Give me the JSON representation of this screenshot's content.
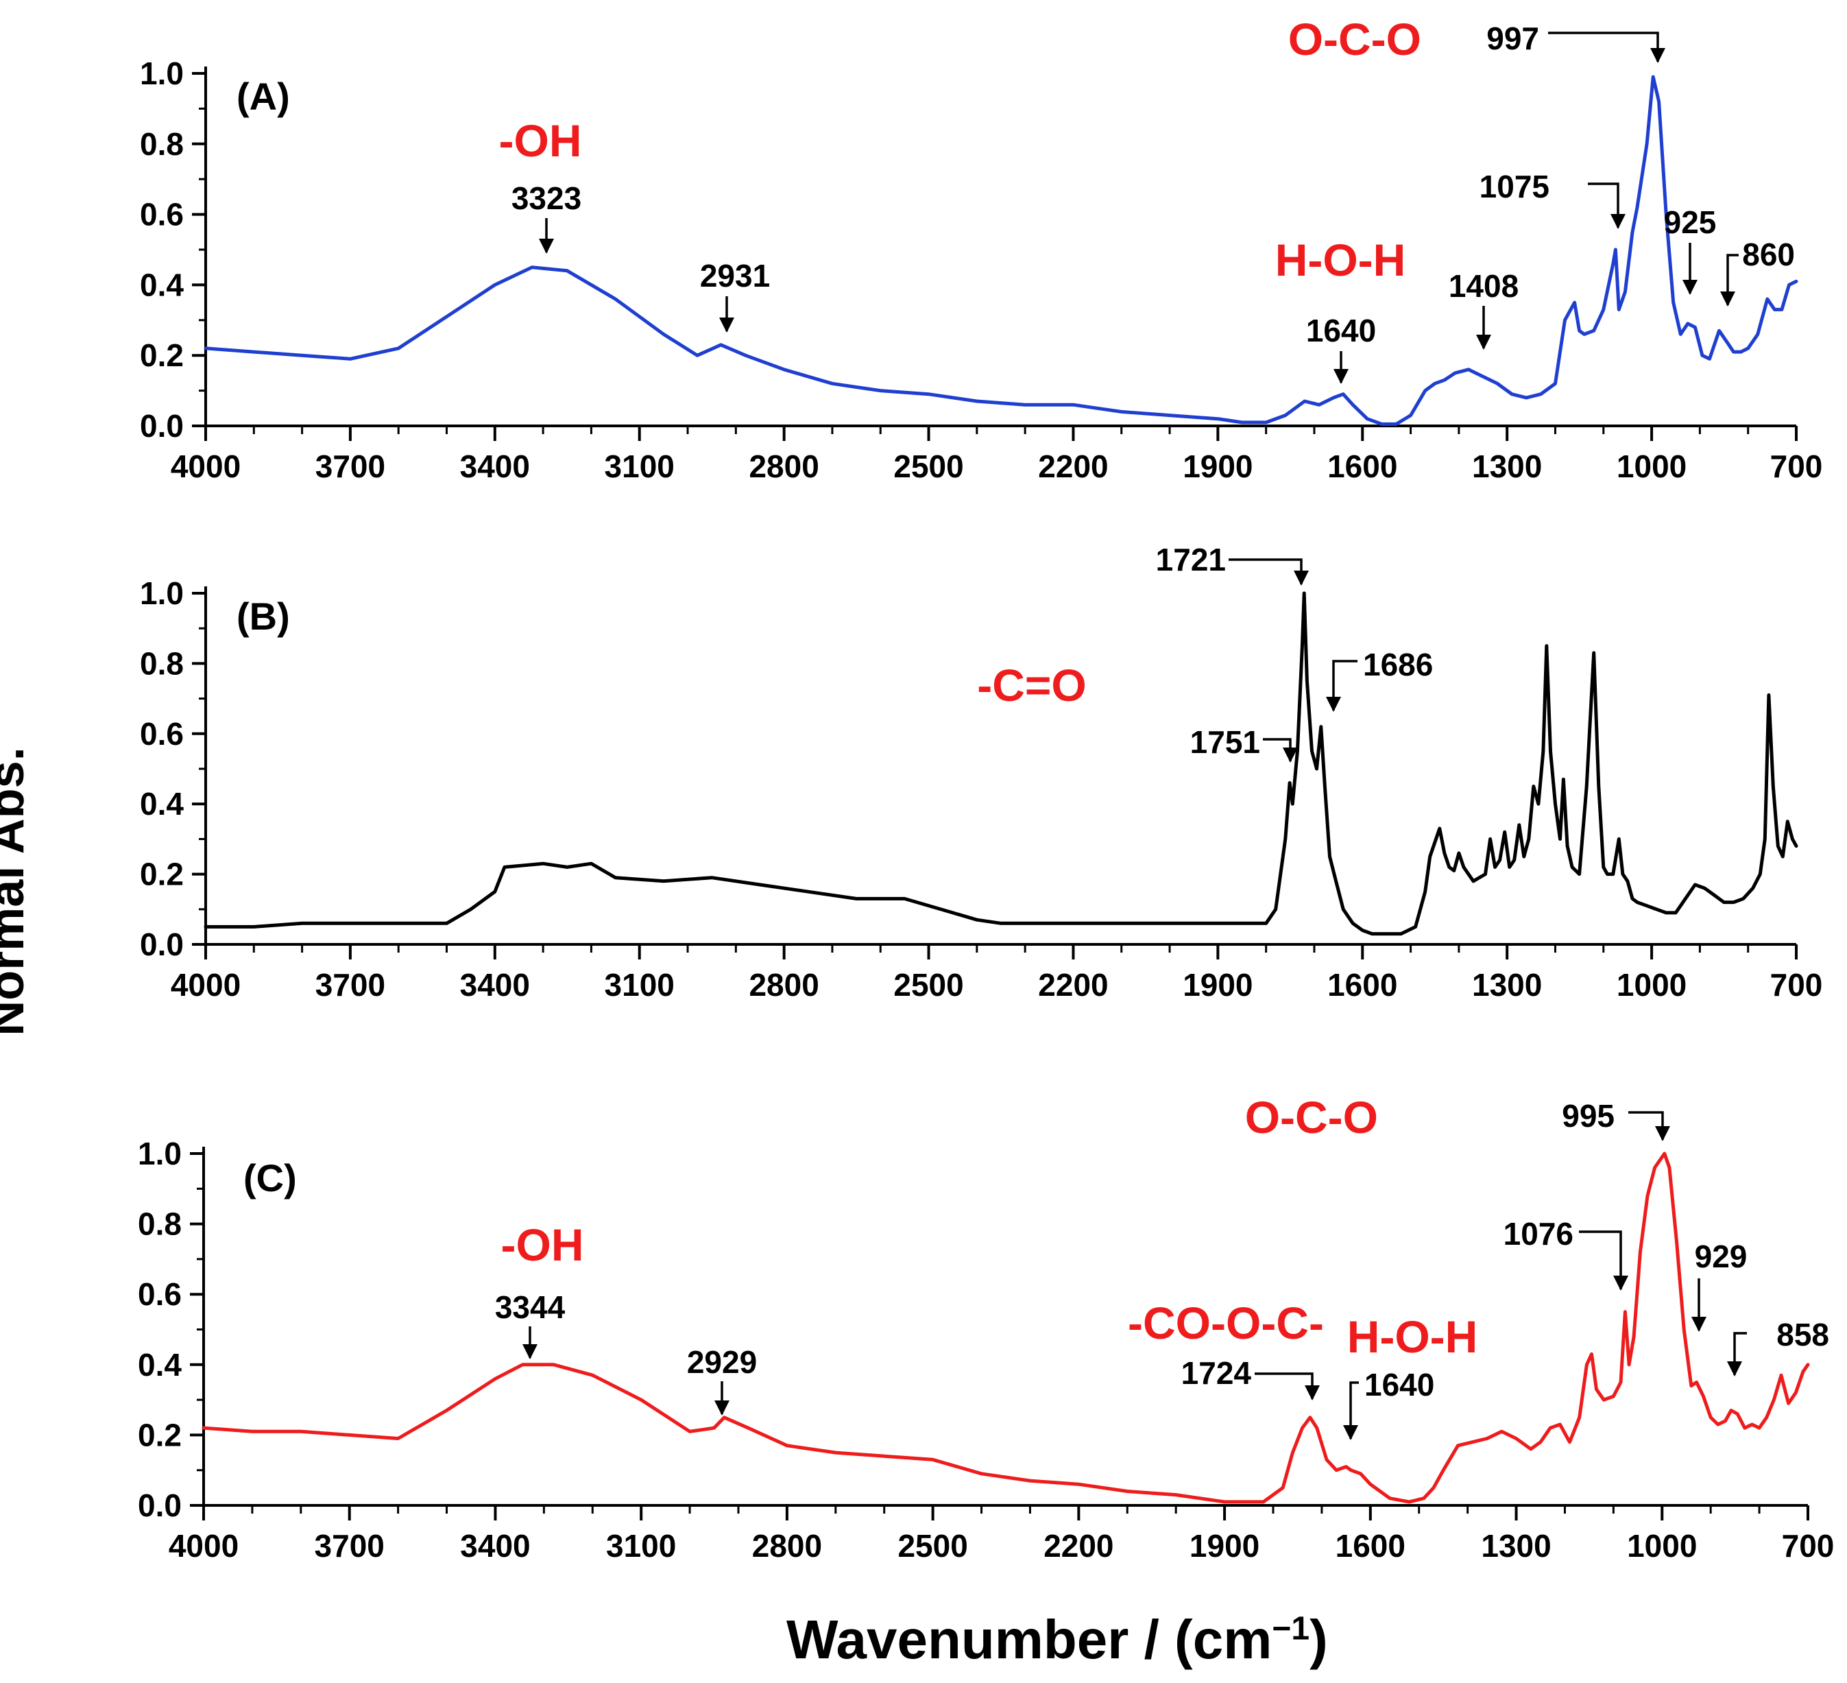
{
  "y_axis_label": "Normal Abs.",
  "x_axis_label_main": "Wavenumber / (cm",
  "x_axis_label_sup": "−1",
  "x_axis_label_close": ")",
  "chart_data": [
    {
      "type": "line",
      "panel": "(A)",
      "color": "#1f3fd0",
      "xlim": [
        4000,
        700
      ],
      "ylim": [
        0,
        1.0
      ],
      "x_ticks": [
        4000,
        3700,
        3400,
        3100,
        2800,
        2500,
        2200,
        1900,
        1600,
        1300,
        1000,
        700
      ],
      "y_ticks": [
        "0.0",
        "0.2",
        "0.4",
        "0.6",
        "0.8",
        "1.0"
      ],
      "series": [
        {
          "name": "(A)",
          "x": [
            4000,
            3900,
            3800,
            3700,
            3600,
            3500,
            3400,
            3323,
            3250,
            3150,
            3050,
            2980,
            2931,
            2880,
            2800,
            2700,
            2600,
            2500,
            2400,
            2300,
            2200,
            2150,
            2100,
            2000,
            1900,
            1850,
            1800,
            1760,
            1720,
            1690,
            1660,
            1640,
            1620,
            1590,
            1560,
            1530,
            1500,
            1470,
            1450,
            1430,
            1408,
            1380,
            1350,
            1320,
            1290,
            1260,
            1230,
            1200,
            1180,
            1160,
            1150,
            1140,
            1120,
            1100,
            1080,
            1075,
            1068,
            1055,
            1040,
            1030,
            1010,
            997,
            985,
            970,
            955,
            940,
            925,
            910,
            895,
            880,
            860,
            845,
            830,
            815,
            800,
            780,
            760,
            745,
            730,
            715,
            700
          ],
          "values": [
            0.22,
            0.21,
            0.2,
            0.19,
            0.22,
            0.31,
            0.4,
            0.45,
            0.44,
            0.36,
            0.26,
            0.2,
            0.23,
            0.2,
            0.16,
            0.12,
            0.1,
            0.09,
            0.07,
            0.06,
            0.06,
            0.05,
            0.04,
            0.03,
            0.02,
            0.01,
            0.01,
            0.03,
            0.07,
            0.06,
            0.08,
            0.09,
            0.06,
            0.02,
            0.005,
            0.005,
            0.03,
            0.1,
            0.12,
            0.13,
            0.15,
            0.16,
            0.14,
            0.12,
            0.09,
            0.08,
            0.09,
            0.12,
            0.3,
            0.35,
            0.27,
            0.26,
            0.27,
            0.33,
            0.46,
            0.5,
            0.33,
            0.38,
            0.55,
            0.62,
            0.8,
            0.99,
            0.92,
            0.6,
            0.35,
            0.26,
            0.29,
            0.28,
            0.2,
            0.19,
            0.27,
            0.24,
            0.21,
            0.21,
            0.22,
            0.26,
            0.36,
            0.33,
            0.33,
            0.4,
            0.41
          ]
        }
      ],
      "annotations": {
        "oh_group": "-OH",
        "hoh_group": "H-O-H",
        "oco_group": "O-C-O",
        "peak_3323": "3323",
        "peak_2931": "2931",
        "peak_1640": "1640",
        "peak_1408": "1408",
        "peak_1075": "1075",
        "peak_997": "997",
        "peak_925": "925",
        "peak_860": "860"
      }
    },
    {
      "type": "line",
      "panel": "(B)",
      "color": "#000000",
      "xlim": [
        4000,
        700
      ],
      "ylim": [
        0,
        1.0
      ],
      "x_ticks": [
        4000,
        3700,
        3400,
        3100,
        2800,
        2500,
        2200,
        1900,
        1600,
        1300,
        1000,
        700
      ],
      "y_ticks": [
        "0.0",
        "0.2",
        "0.4",
        "0.6",
        "0.8",
        "1.0"
      ],
      "series": [
        {
          "name": "(B)",
          "x": [
            4000,
            3900,
            3800,
            3700,
            3600,
            3500,
            3450,
            3400,
            3380,
            3300,
            3250,
            3200,
            3150,
            3050,
            2950,
            2850,
            2750,
            2650,
            2550,
            2450,
            2400,
            2350,
            2300,
            2200,
            2000,
            1850,
            1800,
            1780,
            1760,
            1751,
            1745,
            1735,
            1725,
            1721,
            1715,
            1705,
            1695,
            1686,
            1678,
            1668,
            1655,
            1640,
            1620,
            1600,
            1580,
            1560,
            1520,
            1490,
            1470,
            1460,
            1440,
            1430,
            1420,
            1410,
            1400,
            1390,
            1380,
            1370,
            1345,
            1335,
            1325,
            1315,
            1305,
            1295,
            1285,
            1275,
            1265,
            1255,
            1245,
            1235,
            1225,
            1218,
            1210,
            1200,
            1190,
            1183,
            1175,
            1165,
            1150,
            1135,
            1120,
            1110,
            1100,
            1092,
            1080,
            1068,
            1060,
            1050,
            1040,
            1030,
            1010,
            990,
            970,
            950,
            930,
            910,
            890,
            870,
            850,
            830,
            810,
            790,
            775,
            765,
            757,
            748,
            738,
            728,
            718,
            708,
            700
          ],
          "values": [
            0.05,
            0.05,
            0.06,
            0.06,
            0.06,
            0.06,
            0.1,
            0.15,
            0.22,
            0.23,
            0.22,
            0.23,
            0.19,
            0.18,
            0.19,
            0.17,
            0.15,
            0.13,
            0.13,
            0.09,
            0.07,
            0.06,
            0.06,
            0.06,
            0.06,
            0.06,
            0.06,
            0.1,
            0.3,
            0.46,
            0.4,
            0.55,
            0.85,
            1.0,
            0.75,
            0.55,
            0.5,
            0.62,
            0.45,
            0.25,
            0.18,
            0.1,
            0.06,
            0.04,
            0.03,
            0.03,
            0.03,
            0.05,
            0.15,
            0.25,
            0.33,
            0.26,
            0.22,
            0.21,
            0.26,
            0.22,
            0.2,
            0.18,
            0.2,
            0.3,
            0.22,
            0.24,
            0.32,
            0.22,
            0.24,
            0.34,
            0.25,
            0.3,
            0.45,
            0.4,
            0.55,
            0.85,
            0.55,
            0.4,
            0.3,
            0.47,
            0.28,
            0.22,
            0.2,
            0.45,
            0.83,
            0.45,
            0.22,
            0.2,
            0.2,
            0.3,
            0.2,
            0.18,
            0.13,
            0.12,
            0.11,
            0.1,
            0.09,
            0.09,
            0.13,
            0.17,
            0.16,
            0.14,
            0.12,
            0.12,
            0.13,
            0.16,
            0.2,
            0.3,
            0.71,
            0.45,
            0.28,
            0.25,
            0.35,
            0.3,
            0.28
          ]
        }
      ],
      "annotations": {
        "co_group": "-C=O",
        "peak_1721": "1721",
        "peak_1686": "1686",
        "peak_1751": "1751"
      }
    },
    {
      "type": "line",
      "panel": "(C)",
      "color": "#ee1c1c",
      "xlim": [
        4000,
        700
      ],
      "ylim": [
        0,
        1.0
      ],
      "x_ticks": [
        4000,
        3700,
        3400,
        3100,
        2800,
        2500,
        2200,
        1900,
        1600,
        1300,
        1000,
        700
      ],
      "y_ticks": [
        "0.0",
        "0.2",
        "0.4",
        "0.6",
        "0.8",
        "1.0"
      ],
      "series": [
        {
          "name": "(C)",
          "x": [
            4000,
            3900,
            3800,
            3700,
            3600,
            3500,
            3400,
            3344,
            3280,
            3200,
            3100,
            3000,
            2950,
            2929,
            2880,
            2800,
            2700,
            2600,
            2500,
            2400,
            2300,
            2200,
            2100,
            2000,
            1900,
            1820,
            1780,
            1760,
            1740,
            1724,
            1710,
            1690,
            1670,
            1650,
            1640,
            1620,
            1600,
            1560,
            1520,
            1490,
            1470,
            1450,
            1420,
            1390,
            1360,
            1330,
            1300,
            1270,
            1250,
            1230,
            1210,
            1190,
            1170,
            1155,
            1145,
            1135,
            1120,
            1100,
            1085,
            1076,
            1068,
            1058,
            1045,
            1030,
            1015,
            1000,
            995,
            985,
            970,
            955,
            940,
            929,
            915,
            900,
            885,
            870,
            858,
            845,
            830,
            815,
            800,
            785,
            770,
            755,
            740,
            725,
            710,
            700
          ],
          "values": [
            0.22,
            0.21,
            0.21,
            0.2,
            0.19,
            0.27,
            0.36,
            0.4,
            0.4,
            0.37,
            0.3,
            0.21,
            0.22,
            0.25,
            0.22,
            0.17,
            0.15,
            0.14,
            0.13,
            0.09,
            0.07,
            0.06,
            0.04,
            0.03,
            0.01,
            0.01,
            0.05,
            0.15,
            0.22,
            0.25,
            0.22,
            0.13,
            0.1,
            0.11,
            0.1,
            0.09,
            0.06,
            0.02,
            0.01,
            0.02,
            0.05,
            0.1,
            0.17,
            0.18,
            0.19,
            0.21,
            0.19,
            0.16,
            0.18,
            0.22,
            0.23,
            0.18,
            0.25,
            0.4,
            0.43,
            0.33,
            0.3,
            0.31,
            0.35,
            0.55,
            0.4,
            0.48,
            0.72,
            0.88,
            0.96,
            0.99,
            1.0,
            0.96,
            0.75,
            0.5,
            0.34,
            0.35,
            0.31,
            0.25,
            0.23,
            0.24,
            0.27,
            0.26,
            0.22,
            0.23,
            0.22,
            0.25,
            0.3,
            0.37,
            0.29,
            0.32,
            0.38,
            0.4
          ]
        }
      ],
      "annotations": {
        "oh_group": "-OH",
        "cooc_group": "-CO-O-C-",
        "hoh_group": "H-O-H",
        "oco_group": "O-C-O",
        "peak_3344": "3344",
        "peak_2929": "2929",
        "peak_1724": "1724",
        "peak_1640": "1640",
        "peak_1076": "1076",
        "peak_995": "995",
        "peak_929": "929",
        "peak_858": "858"
      }
    }
  ]
}
